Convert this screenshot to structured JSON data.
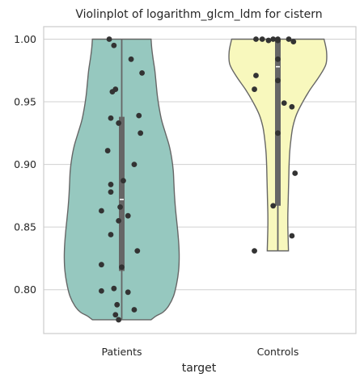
{
  "chart_data": {
    "type": "violin",
    "title": "Violinplot of logarithm_glcm_ldm for cistern",
    "xlabel": "target",
    "ylabel": "",
    "categories": [
      "Patients",
      "Controls"
    ],
    "ylim": [
      0.765,
      1.01
    ],
    "yticks": [
      0.8,
      0.85,
      0.9,
      0.95,
      1.0
    ],
    "ytick_labels": [
      "0.80",
      "0.85",
      "0.90",
      "0.95",
      "1.00"
    ],
    "grid": "horizontal",
    "colors": {
      "Patients": "#96c8bf",
      "Controls": "#f8f8bd",
      "outline": "#666666",
      "points": "#333333",
      "grid": "#d0d0d0",
      "spine": "#cccccc"
    },
    "series": [
      {
        "category": "Patients",
        "range": [
          0.776,
          1.0
        ],
        "box": {
          "q1": 0.815,
          "median": 0.872,
          "q3": 0.938
        },
        "density_profile": [
          [
            0.776,
            0.47
          ],
          [
            0.779,
            0.55
          ],
          [
            0.782,
            0.66
          ],
          [
            0.787,
            0.75
          ],
          [
            0.795,
            0.83
          ],
          [
            0.805,
            0.88
          ],
          [
            0.815,
            0.91
          ],
          [
            0.825,
            0.92
          ],
          [
            0.835,
            0.915
          ],
          [
            0.845,
            0.9
          ],
          [
            0.855,
            0.88
          ],
          [
            0.865,
            0.86
          ],
          [
            0.875,
            0.845
          ],
          [
            0.885,
            0.835
          ],
          [
            0.895,
            0.825
          ],
          [
            0.905,
            0.8
          ],
          [
            0.915,
            0.76
          ],
          [
            0.925,
            0.7
          ],
          [
            0.935,
            0.64
          ],
          [
            0.945,
            0.6
          ],
          [
            0.955,
            0.57
          ],
          [
            0.965,
            0.55
          ],
          [
            0.975,
            0.53
          ],
          [
            0.985,
            0.5
          ],
          [
            0.993,
            0.48
          ],
          [
            1.0,
            0.47
          ]
        ],
        "points": [
          [
            -0.08,
            1.0
          ],
          [
            -0.05,
            0.995
          ],
          [
            0.06,
            0.984
          ],
          [
            0.13,
            0.973
          ],
          [
            -0.04,
            0.96
          ],
          [
            -0.06,
            0.958
          ],
          [
            0.11,
            0.939
          ],
          [
            -0.07,
            0.937
          ],
          [
            -0.02,
            0.933
          ],
          [
            0.12,
            0.925
          ],
          [
            -0.09,
            0.911
          ],
          [
            0.08,
            0.9
          ],
          [
            0.01,
            0.887
          ],
          [
            -0.07,
            0.884
          ],
          [
            -0.07,
            0.878
          ],
          [
            -0.13,
            0.863
          ],
          [
            -0.01,
            0.866
          ],
          [
            0.04,
            0.859
          ],
          [
            -0.02,
            0.855
          ],
          [
            -0.07,
            0.844
          ],
          [
            0.1,
            0.831
          ],
          [
            -0.13,
            0.82
          ],
          [
            0.0,
            0.818
          ],
          [
            -0.13,
            0.799
          ],
          [
            -0.05,
            0.801
          ],
          [
            0.04,
            0.798
          ],
          [
            -0.03,
            0.788
          ],
          [
            0.08,
            0.784
          ],
          [
            -0.04,
            0.78
          ],
          [
            -0.02,
            0.776
          ]
        ]
      },
      {
        "category": "Controls",
        "range": [
          0.831,
          1.0
        ],
        "box": {
          "q1": 0.867,
          "median": 0.978,
          "q3": 1.0
        },
        "density_profile": [
          [
            0.831,
            0.17
          ],
          [
            0.84,
            0.165
          ],
          [
            0.85,
            0.16
          ],
          [
            0.86,
            0.16
          ],
          [
            0.87,
            0.165
          ],
          [
            0.88,
            0.17
          ],
          [
            0.89,
            0.175
          ],
          [
            0.9,
            0.18
          ],
          [
            0.91,
            0.19
          ],
          [
            0.92,
            0.21
          ],
          [
            0.93,
            0.24
          ],
          [
            0.94,
            0.3
          ],
          [
            0.95,
            0.4
          ],
          [
            0.96,
            0.52
          ],
          [
            0.97,
            0.66
          ],
          [
            0.98,
            0.77
          ],
          [
            0.99,
            0.78
          ],
          [
            1.0,
            0.74
          ]
        ],
        "points": [
          [
            -0.14,
            1.0
          ],
          [
            -0.1,
            1.0
          ],
          [
            -0.03,
            1.0
          ],
          [
            0.0,
            1.0
          ],
          [
            0.07,
            1.0
          ],
          [
            0.1,
            0.998
          ],
          [
            -0.06,
            0.999
          ],
          [
            0.0,
            0.999
          ],
          [
            0.0,
            0.984
          ],
          [
            -0.14,
            0.971
          ],
          [
            0.0,
            0.967
          ],
          [
            0.04,
            0.949
          ],
          [
            0.09,
            0.946
          ],
          [
            -0.15,
            0.96
          ],
          [
            0.0,
            0.925
          ],
          [
            0.11,
            0.893
          ],
          [
            -0.03,
            0.867
          ],
          [
            0.09,
            0.843
          ],
          [
            -0.15,
            0.831
          ]
        ]
      }
    ]
  }
}
